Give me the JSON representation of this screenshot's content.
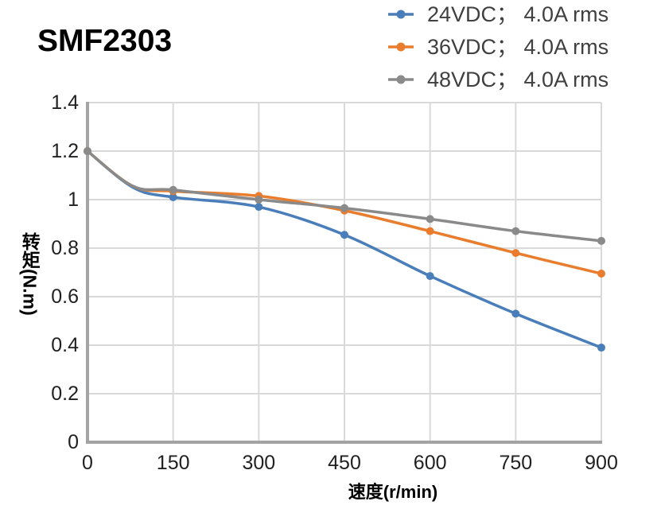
{
  "chart_data": {
    "type": "line",
    "title": "SMF2303",
    "xlabel": "速度(r/min)",
    "ylabel": "转矩(N.m)",
    "xlim": [
      0,
      900
    ],
    "ylim": [
      0,
      1.4
    ],
    "x_tick_labels": [
      "0",
      "150",
      "300",
      "450",
      "600",
      "750",
      "900"
    ],
    "y_tick_labels": [
      "0",
      "0.2",
      "0.4",
      "0.6",
      "0.8",
      "1",
      "1.2",
      "1.4"
    ],
    "grid": true,
    "smooth_lines": true,
    "marker": "circle",
    "legend_position": "top-right",
    "x": [
      0,
      150,
      300,
      450,
      600,
      750,
      900
    ],
    "series": [
      {
        "name": "24VDC； 4.0A rms",
        "color": "#4a7eba",
        "values": [
          1.2,
          1.01,
          0.97,
          0.855,
          0.685,
          0.53,
          0.39
        ],
        "lead_in_bend_point": {
          "x": 80,
          "y": 1.05
        }
      },
      {
        "name": "36VDC； 4.0A rms",
        "color": "#e97d2d",
        "values": [
          1.2,
          1.035,
          1.015,
          0.955,
          0.87,
          0.78,
          0.695
        ],
        "lead_in_bend_point": {
          "x": 80,
          "y": 1.055
        }
      },
      {
        "name": "48VDC； 4.0A rms",
        "color": "#8a8a8a",
        "values": [
          1.2,
          1.04,
          1.0,
          0.965,
          0.92,
          0.87,
          0.83
        ],
        "lead_in_bend_point": {
          "x": 80,
          "y": 1.055
        }
      }
    ]
  },
  "styles": {
    "grid_color": "#d9d9d9",
    "axis_color": "#a3a3a3",
    "tick_text_color": "#212121",
    "legend_text_color": "#404040",
    "title_color": "#000000"
  }
}
